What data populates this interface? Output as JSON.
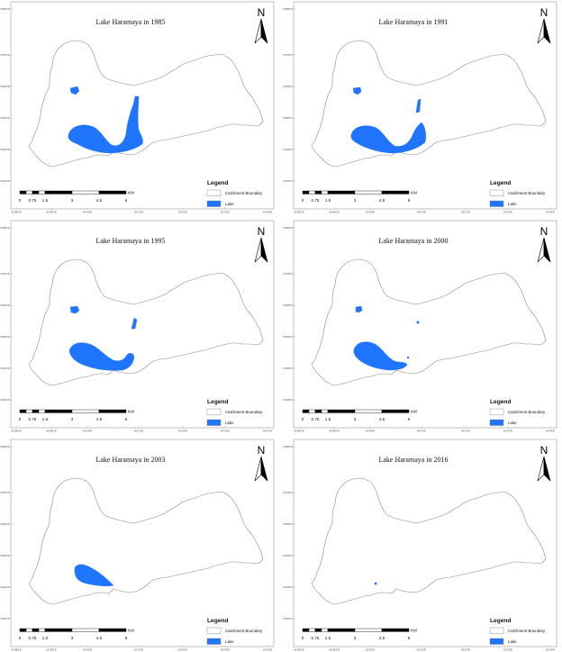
{
  "panels": [
    {
      "title": "Lake Haramaya in 1985"
    },
    {
      "title": "Lake Haramaya in 1991"
    },
    {
      "title": "Lake Haramaya in 1995"
    },
    {
      "title": "Lake Haramaya in 2000"
    },
    {
      "title": "Lake Haramaya in 2003"
    },
    {
      "title": "Lake Haramaya in 2016"
    }
  ],
  "north_label": "N",
  "legend": {
    "title": "Legend",
    "items": [
      {
        "label": "Catchment Boundary",
        "swatch": "#ffffff"
      },
      {
        "label": "Lake",
        "swatch": "#1f75fe"
      }
    ]
  },
  "scale_bar": {
    "labels": [
      "0",
      "0.75",
      "1.5",
      "3",
      "4.5",
      "6"
    ],
    "unit": "KM"
  },
  "lat_labels": [
    "9°28'0\"N",
    "9°27'0\"N",
    "9°26'0\"N",
    "9°25'0\"N",
    "9°24'0\"N",
    "9°23'0\"N"
  ],
  "lon_labels": [
    "41°58'0\"E",
    "41°59'0\"E",
    "42°0'0\"E",
    "42°1'0\"E",
    "42°2'0\"E",
    "42°3'0\"E",
    "42°4'0\"E"
  ],
  "colors": {
    "lake": "#1f75fe",
    "boundary": "#8a8a8a",
    "frame": "#9a9a9a"
  }
}
